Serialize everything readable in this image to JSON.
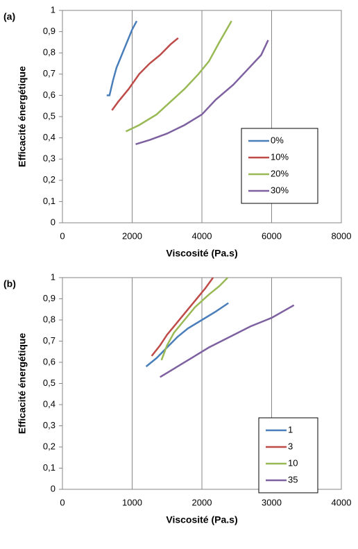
{
  "chart_data": [
    {
      "type": "line",
      "panel": "(a)",
      "xlabel": "Viscosité (Pa.s)",
      "ylabel": "Efficacité énergétique",
      "xlim": [
        0,
        8000
      ],
      "xticks": [
        0,
        2000,
        4000,
        6000,
        8000
      ],
      "ylim": [
        0,
        1
      ],
      "yticks": [
        0,
        {
          "value": 0.1,
          "label": "0,1"
        },
        {
          "value": 0.2,
          "label": "0,2"
        },
        {
          "value": 0.3,
          "label": "0,3"
        },
        {
          "value": 0.4,
          "label": "0,4"
        },
        {
          "value": 0.5,
          "label": "0,5"
        },
        {
          "value": 0.6,
          "label": "0,6"
        },
        {
          "value": 0.7,
          "label": "0,7"
        },
        {
          "value": 0.8,
          "label": "0,8"
        },
        {
          "value": 0.9,
          "label": "0,9"
        },
        1
      ],
      "grid": "x",
      "legend": "right",
      "series": [
        {
          "name": "0%",
          "color": "#4a7ebb",
          "x": [
            1270,
            1350,
            1450,
            1550,
            1700,
            1850,
            2000,
            2130
          ],
          "values": [
            0.6,
            0.6,
            0.67,
            0.73,
            0.79,
            0.85,
            0.91,
            0.95
          ]
        },
        {
          "name": "10%",
          "color": "#be4b48",
          "x": [
            1420,
            1600,
            1900,
            2200,
            2500,
            2800,
            3100,
            3320
          ],
          "values": [
            0.53,
            0.57,
            0.63,
            0.7,
            0.75,
            0.79,
            0.84,
            0.87
          ]
        },
        {
          "name": "20%",
          "color": "#98b954",
          "x": [
            1820,
            2200,
            2700,
            3100,
            3500,
            3900,
            4200,
            4500,
            4850
          ],
          "values": [
            0.43,
            0.46,
            0.51,
            0.57,
            0.63,
            0.7,
            0.76,
            0.85,
            0.95
          ]
        },
        {
          "name": "30%",
          "color": "#7d60a0",
          "x": [
            2100,
            2500,
            3000,
            3500,
            4000,
            4400,
            4900,
            5300,
            5700,
            5900
          ],
          "values": [
            0.37,
            0.39,
            0.42,
            0.46,
            0.51,
            0.58,
            0.65,
            0.72,
            0.79,
            0.86
          ]
        }
      ]
    },
    {
      "type": "line",
      "panel": "(b)",
      "xlabel": "Viscosité (Pa.s)",
      "ylabel": "Efficacité énergétique",
      "xlim": [
        0,
        4000
      ],
      "xticks": [
        0,
        1000,
        2000,
        3000,
        4000
      ],
      "ylim": [
        0,
        1
      ],
      "yticks": [
        0,
        {
          "value": 0.1,
          "label": "0,1"
        },
        {
          "value": 0.2,
          "label": "0,2"
        },
        {
          "value": 0.3,
          "label": "0,3"
        },
        {
          "value": 0.4,
          "label": "0,4"
        },
        {
          "value": 0.5,
          "label": "0,5"
        },
        {
          "value": 0.6,
          "label": "0,6"
        },
        {
          "value": 0.7,
          "label": "0,7"
        },
        {
          "value": 0.8,
          "label": "0,8"
        },
        {
          "value": 0.9,
          "label": "0,9"
        },
        1
      ],
      "grid": "x",
      "legend": "right",
      "series": [
        {
          "name": "1",
          "color": "#4a7ebb",
          "x": [
            1200,
            1350,
            1500,
            1650,
            1800,
            2000,
            2200,
            2380
          ],
          "values": [
            0.58,
            0.62,
            0.67,
            0.72,
            0.76,
            0.8,
            0.84,
            0.88
          ]
        },
        {
          "name": "3",
          "color": "#be4b48",
          "x": [
            1280,
            1400,
            1500,
            1600,
            1750,
            1900,
            2050,
            2160
          ],
          "values": [
            0.63,
            0.68,
            0.73,
            0.77,
            0.83,
            0.89,
            0.95,
            1.0
          ]
        },
        {
          "name": "10",
          "color": "#98b954",
          "x": [
            1420,
            1500,
            1600,
            1750,
            1900,
            2100,
            2250,
            2370
          ],
          "values": [
            0.61,
            0.68,
            0.74,
            0.8,
            0.86,
            0.92,
            0.96,
            1.0
          ]
        },
        {
          "name": "35",
          "color": "#7d60a0",
          "x": [
            1400,
            1600,
            1850,
            2100,
            2400,
            2700,
            3000,
            3320
          ],
          "values": [
            0.53,
            0.57,
            0.62,
            0.67,
            0.72,
            0.77,
            0.81,
            0.87
          ]
        }
      ]
    }
  ]
}
